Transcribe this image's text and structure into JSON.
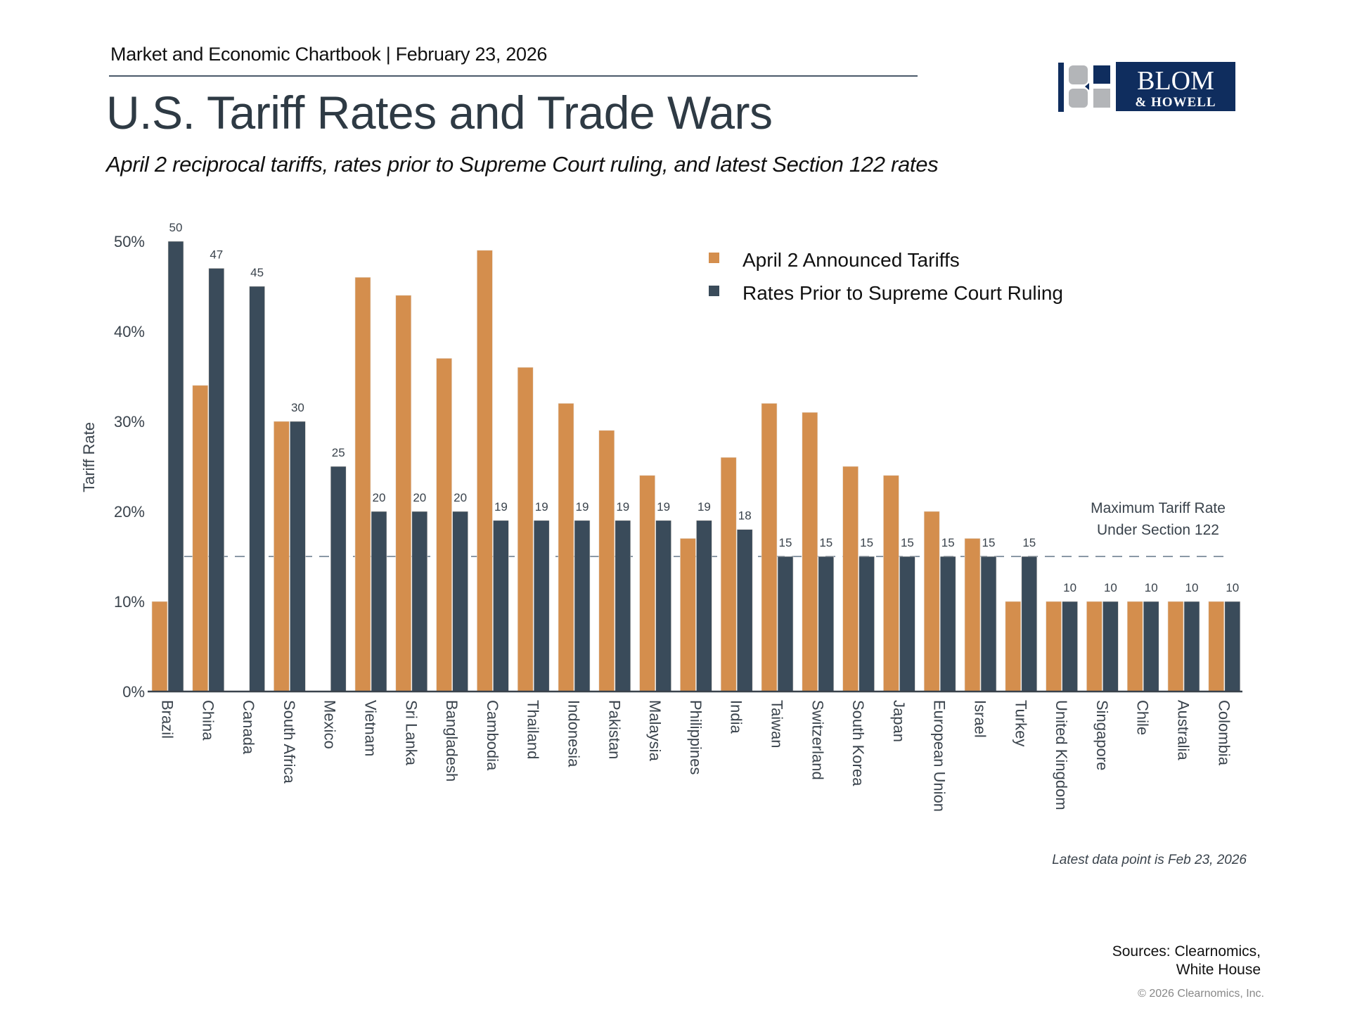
{
  "header": {
    "chartbook": "Market and Economic Chartbook | February 23, 2026",
    "title": "U.S. Tariff Rates and Trade Wars",
    "subtitle": "April 2 reciprocal tariffs, rates prior to Supreme Court ruling, and latest Section 122 rates"
  },
  "logo": {
    "line1": "BLOM",
    "line2": "& HOWELL",
    "navy": "#0f2d5e",
    "gray": "#b3b5b8"
  },
  "footer": {
    "latest": "Latest data point is Feb 23, 2026",
    "sources_line1": "Sources: Clearnomics,",
    "sources_line2": "White House",
    "copyright": "© 2026 Clearnomics, Inc."
  },
  "chart_data": {
    "type": "bar",
    "title": "U.S. Tariff Rates and Trade Wars",
    "xlabel": "",
    "ylabel": "Tariff Rate",
    "ylim": [
      0,
      50
    ],
    "yticks": [
      0,
      10,
      20,
      30,
      40,
      50
    ],
    "ytick_labels": [
      "0%",
      "10%",
      "20%",
      "30%",
      "40%",
      "50%"
    ],
    "grid": false,
    "legend_position": "top-right",
    "categories": [
      "Brazil",
      "China",
      "Canada",
      "South Africa",
      "Mexico",
      "Vietnam",
      "Sri Lanka",
      "Bangladesh",
      "Cambodia",
      "Thailand",
      "Indonesia",
      "Pakistan",
      "Malaysia",
      "Philippines",
      "India",
      "Taiwan",
      "Switzerland",
      "South Korea",
      "Japan",
      "European Union",
      "Israel",
      "Turkey",
      "United Kingdom",
      "Singapore",
      "Chile",
      "Australia",
      "Colombia"
    ],
    "series": [
      {
        "name": "April 2 Announced Tariffs",
        "color": "#d48e4d",
        "values": [
          10,
          34,
          null,
          30,
          null,
          46,
          44,
          37,
          49,
          36,
          32,
          29,
          24,
          17,
          26,
          32,
          31,
          25,
          24,
          20,
          17,
          10,
          10,
          10,
          10,
          10,
          10
        ],
        "labeled": false
      },
      {
        "name": "Rates Prior to Supreme Court Ruling",
        "color": "#3a4b5a",
        "values": [
          50,
          47,
          45,
          30,
          25,
          20,
          20,
          20,
          19,
          19,
          19,
          19,
          19,
          19,
          18,
          15,
          15,
          15,
          15,
          15,
          15,
          15,
          10,
          10,
          10,
          10,
          10
        ],
        "labeled": true
      }
    ],
    "reference_line": {
      "value": 15,
      "style": "dashed",
      "color": "#8a98a6",
      "label_line1": "Maximum Tariff Rate",
      "label_line2": "Under Section 122"
    }
  }
}
